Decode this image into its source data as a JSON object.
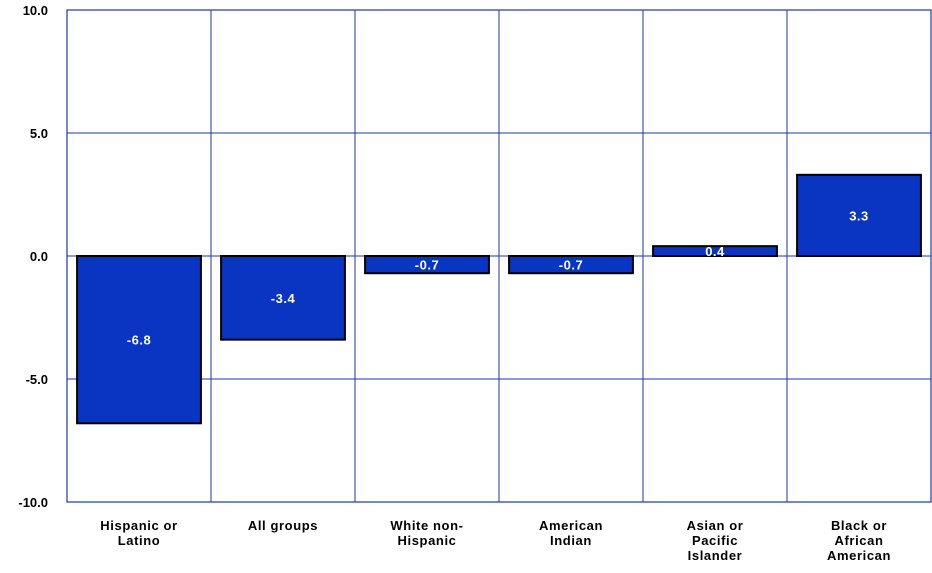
{
  "chart_data": {
    "type": "bar",
    "categories": [
      [
        "Hispanic or",
        "Latino"
      ],
      [
        "All groups"
      ],
      [
        "White non-",
        "Hispanic"
      ],
      [
        "American",
        "Indian"
      ],
      [
        "Asian or",
        "Pacific",
        "Islander"
      ],
      [
        "Black or",
        "African",
        "American"
      ]
    ],
    "values": [
      -6.8,
      -3.4,
      -0.7,
      -0.7,
      0.4,
      3.3
    ],
    "data_labels": [
      "-6.8",
      "-3.4",
      "-0.7",
      "-0.7",
      "0.4",
      "3.3"
    ],
    "y_ticks": [
      10.0,
      5.0,
      0.0,
      -5.0,
      -10.0
    ],
    "y_tick_labels": [
      "10.0",
      "5.0",
      "0.0",
      "-5.0",
      "-10.0"
    ],
    "ylim": [
      -10,
      10
    ],
    "grid": true,
    "colors": {
      "bar_fill": "#0a35c2",
      "bar_border": "#000000",
      "grid": "#1a35b0",
      "data_label": "#ffffff"
    },
    "title": "",
    "xlabel": "",
    "ylabel": ""
  }
}
